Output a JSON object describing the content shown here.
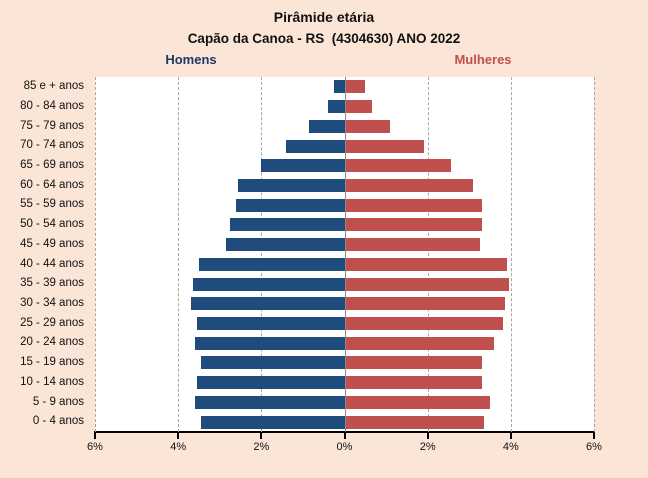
{
  "chart": {
    "title": "Pirâmide etária",
    "subtitle": "Capão da Canoa - RS  (4304630) ANO 2022",
    "left_series_label": "Homens",
    "right_series_label": "Mulheres"
  },
  "colors": {
    "background": "#fbe5d6",
    "plot_background": "#ffffff",
    "men_bar": "#1f4b7d",
    "women_bar": "#c0504d",
    "men_label_text": "#1f3864",
    "women_label_text": "#c0504d",
    "gridline": "#a6a6a6",
    "center_line": "#8a8a8a",
    "axis": "#000000"
  },
  "chart_data": {
    "type": "bar",
    "subtype": "population-pyramid",
    "title": "Pirâmide etária",
    "subtitle": "Capão da Canoa - RS  (4304630) ANO 2022",
    "units": "% of total population",
    "categories": [
      "85 e + anos",
      "80 - 84 anos",
      "75 - 79 anos",
      "70 - 74 anos",
      "65 - 69 anos",
      "60 - 64 anos",
      "55 - 59 anos",
      "50 - 54 anos",
      "45 - 49 anos",
      "40 - 44 anos",
      "35 - 39 anos",
      "30 - 34 anos",
      "25 - 29 anos",
      "20 - 24 anos",
      "15 - 19 anos",
      "10 - 14 anos",
      "5 - 9 anos",
      "0 - 4 anos"
    ],
    "series": [
      {
        "name": "Homens",
        "side": "left",
        "color": "#1f4b7d",
        "values": [
          0.25,
          0.4,
          0.85,
          1.4,
          2.0,
          2.55,
          2.6,
          2.75,
          2.85,
          3.5,
          3.65,
          3.7,
          3.55,
          3.6,
          3.45,
          3.55,
          3.6,
          3.45
        ]
      },
      {
        "name": "Mulheres",
        "side": "right",
        "color": "#c0504d",
        "values": [
          0.5,
          0.65,
          1.1,
          1.9,
          2.55,
          3.1,
          3.3,
          3.3,
          3.25,
          3.9,
          3.95,
          3.85,
          3.8,
          3.6,
          3.3,
          3.3,
          3.5,
          3.35
        ]
      }
    ],
    "x_axis": {
      "tick_labels": [
        "6%",
        "4%",
        "2%",
        "0%",
        "2%",
        "4%",
        "6%"
      ],
      "xlim_percent": [
        -6,
        6
      ],
      "tick_step_percent": 2
    },
    "grid": "dashed vertical gridlines every 2%, solid line at 0%",
    "legend_position": "top (Homens left in dark blue, Mulheres right in red)"
  }
}
